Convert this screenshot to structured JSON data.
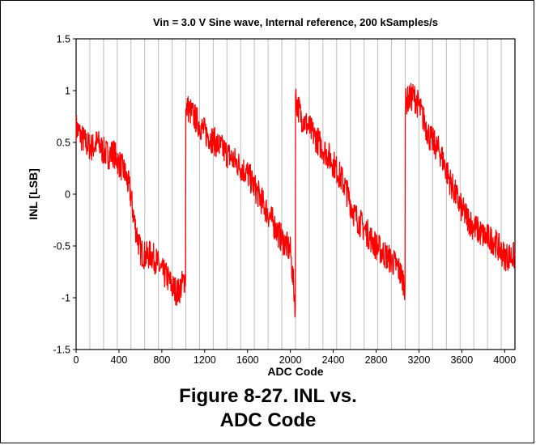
{
  "figure": {
    "caption_line1": "Figure 8-27. INL vs.",
    "caption_line2": "ADC Code"
  },
  "chart_data": {
    "type": "line",
    "title": "Vin = 3.0 V Sine wave, Internal reference, 200 kSamples/s",
    "xlabel": "ADC Code",
    "ylabel": "INL [LSB]",
    "xlim": [
      0,
      4096
    ],
    "ylim": [
      -1.5,
      1.5
    ],
    "x_ticks": [
      0,
      400,
      800,
      1200,
      1600,
      2000,
      2400,
      2800,
      3200,
      3600,
      4000
    ],
    "x_tick_labels": [
      "0",
      "400",
      "800",
      "1200",
      "1600",
      "2000",
      "2400",
      "2800",
      "3200",
      "3600",
      "4000"
    ],
    "y_ticks": [
      -1.5,
      -1,
      -0.5,
      0,
      0.5,
      1,
      1.5
    ],
    "y_tick_labels": [
      "-1.5",
      "-1",
      "-0.5",
      "0",
      "0.5",
      "1",
      "1.5"
    ],
    "grid": "vertical",
    "vertical_grid_step": 128,
    "line_color": "#ff0000",
    "series": [
      {
        "x": [
          0,
          50,
          100,
          150,
          200,
          250,
          300,
          350,
          400,
          450,
          500,
          550,
          600,
          650,
          700,
          750,
          800,
          850,
          900,
          950,
          1000,
          1022,
          1024,
          1030,
          1100,
          1200,
          1300,
          1400,
          1500,
          1600,
          1700,
          1800,
          1900,
          2000,
          2040,
          2046,
          2048,
          2055,
          2100,
          2200,
          2300,
          2400,
          2500,
          2600,
          2700,
          2800,
          2900,
          3000,
          3060,
          3070,
          3072,
          3080,
          3150,
          3200,
          3300,
          3400,
          3500,
          3600,
          3700,
          3800,
          3900,
          4000,
          4096
        ],
        "y": [
          0.65,
          0.55,
          0.48,
          0.45,
          0.5,
          0.42,
          0.38,
          0.4,
          0.3,
          0.22,
          0.05,
          -0.3,
          -0.55,
          -0.6,
          -0.58,
          -0.65,
          -0.75,
          -0.8,
          -0.9,
          -0.95,
          -0.85,
          -0.8,
          0.8,
          0.85,
          0.75,
          0.6,
          0.5,
          0.4,
          0.3,
          0.2,
          0.0,
          -0.2,
          -0.4,
          -0.55,
          -1.0,
          -1.1,
          0.95,
          0.9,
          0.75,
          0.6,
          0.45,
          0.3,
          0.1,
          -0.2,
          -0.35,
          -0.5,
          -0.6,
          -0.7,
          -0.85,
          -0.9,
          0.85,
          0.9,
          0.95,
          0.85,
          0.55,
          0.4,
          0.1,
          -0.15,
          -0.3,
          -0.4,
          -0.45,
          -0.6,
          -0.6
        ]
      }
    ]
  }
}
